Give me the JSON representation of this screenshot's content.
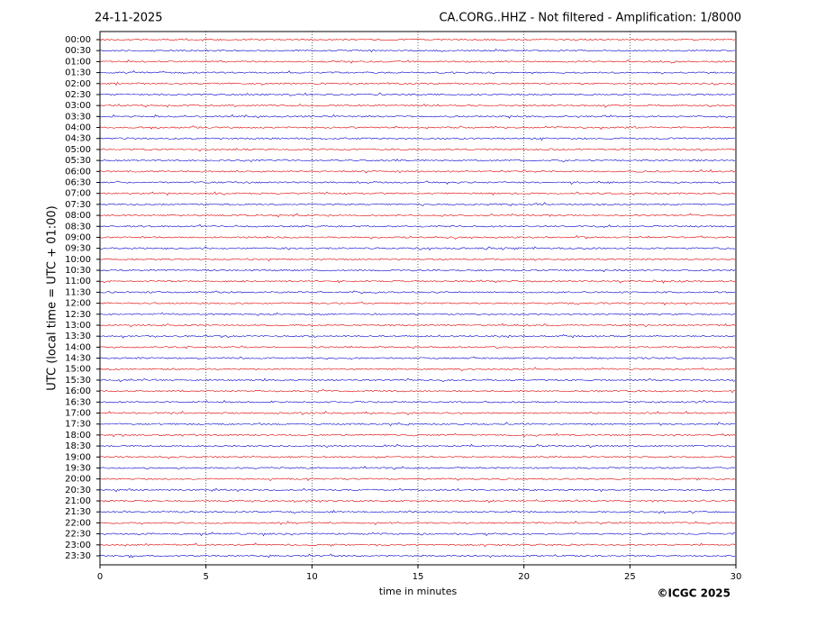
{
  "chart_data": {
    "type": "helicorder",
    "date": "24-11-2025",
    "title": "CA.CORG..HHZ - Not filtered - Amplification: 1/8000",
    "ylabel": "UTC (local time = UTC + 01:00)",
    "xlabel": "time in minutes",
    "credit": "©ICGC 2025",
    "categories": [
      "00:00",
      "00:30",
      "01:00",
      "01:30",
      "02:00",
      "02:30",
      "03:00",
      "03:30",
      "04:00",
      "04:30",
      "05:00",
      "05:30",
      "06:00",
      "06:30",
      "07:00",
      "07:30",
      "08:00",
      "08:30",
      "09:00",
      "09:30",
      "10:00",
      "10:30",
      "11:00",
      "11:30",
      "12:00",
      "12:30",
      "13:00",
      "13:30",
      "14:00",
      "14:30",
      "15:00",
      "15:30",
      "16:00",
      "16:30",
      "17:00",
      "17:30",
      "18:00",
      "18:30",
      "19:00",
      "19:30",
      "20:00",
      "20:30",
      "21:00",
      "21:30",
      "22:00",
      "22:30",
      "23:00",
      "23:30"
    ],
    "xlim": [
      0,
      30
    ],
    "xticks": [
      0,
      5,
      10,
      15,
      20,
      25,
      30
    ],
    "trace_colors": [
      "#e00000",
      "#0000cc"
    ],
    "grid": true
  }
}
